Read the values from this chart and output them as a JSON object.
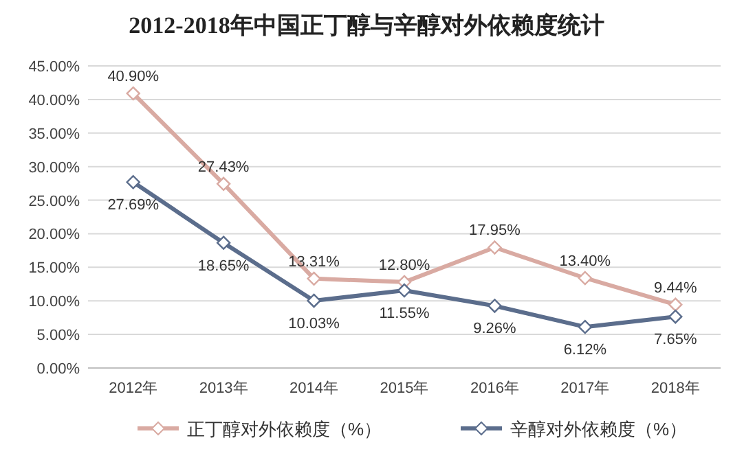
{
  "chart_data": {
    "type": "line",
    "title": "2012-2018年中国正丁醇与辛醇对外依赖度统计",
    "categories": [
      "2012年",
      "2013年",
      "2014年",
      "2015年",
      "2016年",
      "2017年",
      "2018年"
    ],
    "series": [
      {
        "name": "正丁醇对外依赖度（%）",
        "color": "#d9aaa2",
        "values": [
          40.9,
          27.43,
          13.31,
          12.8,
          17.95,
          13.4,
          9.44
        ],
        "value_labels": [
          "40.90%",
          "27.43%",
          "13.31%",
          "12.80%",
          "17.95%",
          "13.40%",
          "9.44%"
        ]
      },
      {
        "name": "辛醇对外依赖度（%）",
        "color": "#5b6d8c",
        "values": [
          27.69,
          18.65,
          10.03,
          11.55,
          9.26,
          6.12,
          7.65
        ],
        "value_labels": [
          "27.69%",
          "18.65%",
          "10.03%",
          "11.55%",
          "9.26%",
          "6.12%",
          "7.65%"
        ]
      }
    ],
    "ylim": [
      0,
      45
    ],
    "yticks": [
      {
        "value": 0,
        "label": "0.00%"
      },
      {
        "value": 5,
        "label": "5.00%"
      },
      {
        "value": 10,
        "label": "10.00%"
      },
      {
        "value": 15,
        "label": "15.00%"
      },
      {
        "value": 20,
        "label": "20.00%"
      },
      {
        "value": 25,
        "label": "25.00%"
      },
      {
        "value": 30,
        "label": "30.00%"
      },
      {
        "value": 35,
        "label": "35.00%"
      },
      {
        "value": 40,
        "label": "40.00%"
      },
      {
        "value": 45,
        "label": "45.00%"
      }
    ],
    "grid": "y",
    "legend": "bottom",
    "marker": "diamond",
    "line_style": "solid"
  }
}
